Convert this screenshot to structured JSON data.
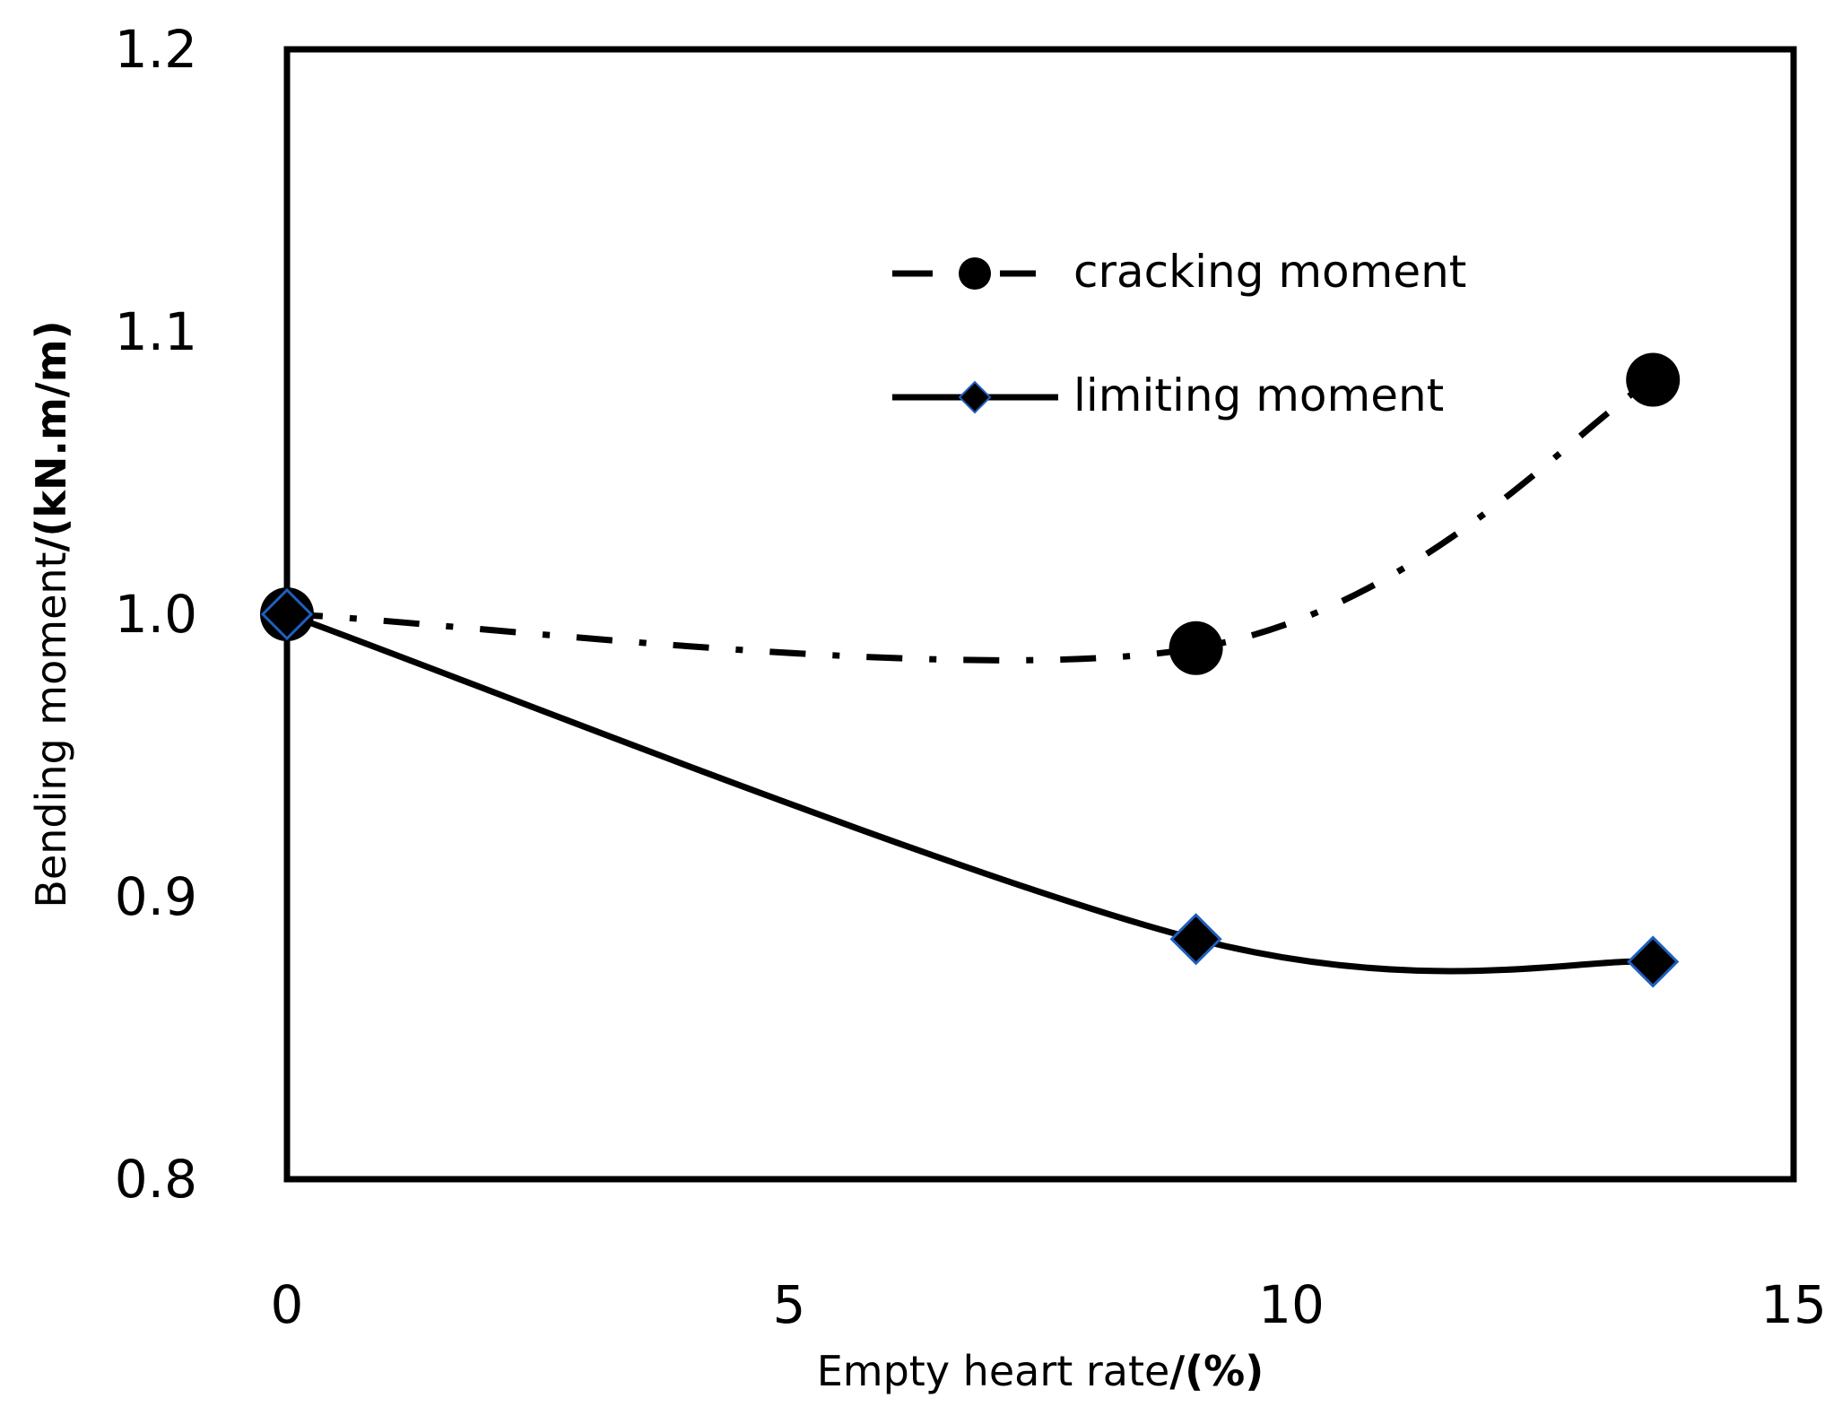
{
  "chart_data": {
    "type": "line",
    "title": "",
    "xlabel": {
      "main": "Empty heart rate",
      "bold_suffix": "/(%)"
    },
    "ylabel": {
      "main": "Bending moment",
      "bold_suffix": "/(kN.m/m)"
    },
    "xlim": [
      0,
      15
    ],
    "ylim": [
      0.8,
      1.2
    ],
    "x_ticks": [
      {
        "value": 0,
        "label": "0"
      },
      {
        "value": 5,
        "label": "5"
      },
      {
        "value": 10,
        "label": "10"
      },
      {
        "value": 15,
        "label": "15"
      }
    ],
    "y_ticks": [
      {
        "value": 0.8,
        "label": "0.8"
      },
      {
        "value": 0.9,
        "label": "0.9"
      },
      {
        "value": 1.0,
        "label": "1.0"
      },
      {
        "value": 1.1,
        "label": "1.1"
      },
      {
        "value": 1.2,
        "label": "1.2"
      }
    ],
    "grid": false,
    "legend_position": "top-right",
    "series": [
      {
        "name": "cracking moment",
        "line_style": "dash-dot",
        "marker": "circle",
        "color": "#000000",
        "x": [
          0,
          9.05,
          13.6
        ],
        "y": [
          1.0,
          0.988,
          1.083
        ]
      },
      {
        "name": "limiting moment",
        "line_style": "solid",
        "marker": "diamond",
        "color": "#000000",
        "marker_edge": "#1f5fbf",
        "x": [
          0,
          9.05,
          13.6
        ],
        "y": [
          1.0,
          0.885,
          0.877
        ]
      }
    ]
  }
}
